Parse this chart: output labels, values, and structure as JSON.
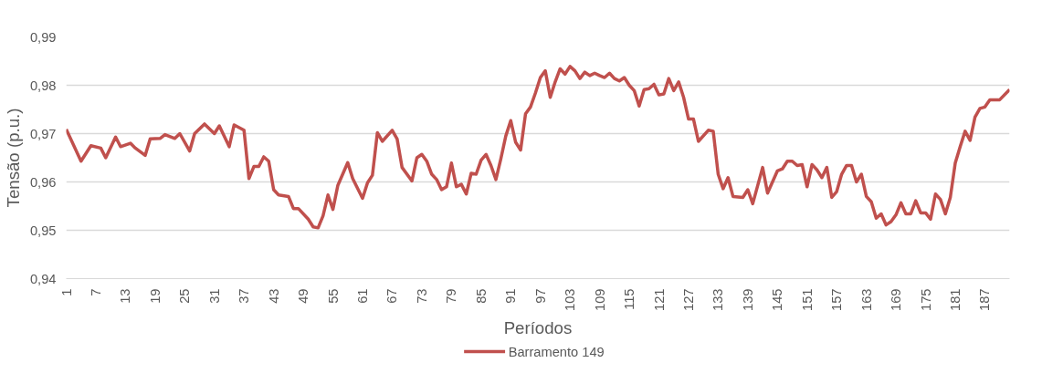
{
  "chart_data": {
    "type": "line",
    "xlabel": "Períodos",
    "ylabel": "Tensão (p.u.)",
    "xlim": [
      1,
      192
    ],
    "ylim": [
      0.94,
      0.99
    ],
    "xticks": [
      1,
      7,
      13,
      19,
      25,
      31,
      37,
      43,
      49,
      55,
      61,
      67,
      73,
      79,
      85,
      91,
      97,
      103,
      109,
      115,
      121,
      127,
      133,
      139,
      145,
      151,
      157,
      163,
      169,
      175,
      181,
      187
    ],
    "yticks": [
      {
        "value": 0.94,
        "label": "0,94"
      },
      {
        "value": 0.95,
        "label": "0,95"
      },
      {
        "value": 0.96,
        "label": "0,96"
      },
      {
        "value": 0.97,
        "label": "0,97"
      },
      {
        "value": 0.98,
        "label": "0,98"
      },
      {
        "value": 0.99,
        "label": "0,99"
      }
    ],
    "grid": "y",
    "legend": "bottom",
    "marker": "none",
    "line_style": "solid",
    "series": [
      {
        "name": "Barramento 149",
        "color": "#c0504d",
        "x": [
          1,
          4,
          6,
          8,
          9,
          11,
          12,
          14,
          15,
          17,
          18,
          20,
          21,
          23,
          24,
          26,
          27,
          29,
          31,
          32,
          34,
          35,
          37,
          38,
          39,
          40,
          41,
          42,
          43,
          44,
          46,
          47,
          48,
          50,
          51,
          52,
          53,
          54,
          55,
          56,
          58,
          59,
          61,
          62,
          63,
          64,
          65,
          67,
          68,
          69,
          71,
          72,
          73,
          74,
          75,
          76,
          77,
          78,
          79,
          80,
          81,
          82,
          83,
          84,
          85,
          86,
          87,
          88,
          89,
          90,
          91,
          92,
          93,
          94,
          95,
          96,
          97,
          98,
          99,
          100,
          101,
          102,
          103,
          104,
          105,
          106,
          107,
          108,
          109,
          110,
          111,
          112,
          113,
          114,
          115,
          116,
          117,
          118,
          119,
          120,
          121,
          122,
          123,
          124,
          125,
          126,
          127,
          128,
          129,
          131,
          132,
          133,
          134,
          135,
          136,
          138,
          139,
          140,
          142,
          143,
          145,
          146,
          147,
          148,
          149,
          150,
          151,
          152,
          153,
          154,
          155,
          156,
          157,
          158,
          159,
          160,
          161,
          162,
          163,
          164,
          165,
          166,
          167,
          168,
          169,
          170,
          171,
          172,
          173,
          174,
          175,
          176,
          177,
          178,
          179,
          180,
          181,
          182,
          183,
          184,
          185,
          186,
          187,
          188,
          189,
          190,
          192
        ],
        "values": [
          0.9709,
          0.9643,
          0.9675,
          0.967,
          0.965,
          0.9693,
          0.9673,
          0.968,
          0.967,
          0.9655,
          0.9689,
          0.969,
          0.9698,
          0.969,
          0.97,
          0.9664,
          0.97,
          0.972,
          0.97,
          0.9716,
          0.9673,
          0.9718,
          0.9707,
          0.9607,
          0.9632,
          0.9632,
          0.9652,
          0.9643,
          0.9584,
          0.9573,
          0.957,
          0.9545,
          0.9545,
          0.9523,
          0.9507,
          0.9505,
          0.953,
          0.9573,
          0.9543,
          0.9593,
          0.964,
          0.9607,
          0.9566,
          0.9598,
          0.9614,
          0.9702,
          0.9684,
          0.9707,
          0.9689,
          0.963,
          0.9602,
          0.965,
          0.9657,
          0.9643,
          0.9616,
          0.9605,
          0.9584,
          0.959,
          0.9639,
          0.959,
          0.9595,
          0.9575,
          0.9618,
          0.9616,
          0.9645,
          0.9657,
          0.9634,
          0.9605,
          0.9648,
          0.9695,
          0.9727,
          0.9682,
          0.9666,
          0.9741,
          0.9755,
          0.9784,
          0.9816,
          0.983,
          0.9775,
          0.9807,
          0.9834,
          0.9823,
          0.9839,
          0.983,
          0.9814,
          0.9827,
          0.982,
          0.9825,
          0.982,
          0.9816,
          0.9825,
          0.9814,
          0.9809,
          0.9816,
          0.98,
          0.9789,
          0.9757,
          0.9791,
          0.9793,
          0.9802,
          0.978,
          0.9782,
          0.9814,
          0.9789,
          0.9807,
          0.9775,
          0.973,
          0.973,
          0.9684,
          0.9707,
          0.9705,
          0.9616,
          0.9586,
          0.9609,
          0.957,
          0.9568,
          0.9584,
          0.9555,
          0.963,
          0.9577,
          0.9623,
          0.9627,
          0.9643,
          0.9643,
          0.9634,
          0.9636,
          0.959,
          0.9636,
          0.9625,
          0.9609,
          0.963,
          0.9568,
          0.958,
          0.9616,
          0.9634,
          0.9634,
          0.96,
          0.9616,
          0.957,
          0.9559,
          0.9525,
          0.9534,
          0.9511,
          0.9518,
          0.9532,
          0.9557,
          0.9534,
          0.9534,
          0.9561,
          0.9536,
          0.9536,
          0.9523,
          0.9575,
          0.9564,
          0.9534,
          0.9568,
          0.9639,
          0.9673,
          0.9705,
          0.9686,
          0.9734,
          0.9752,
          0.9755,
          0.977,
          0.977,
          0.977,
          0.9791
        ]
      }
    ]
  }
}
